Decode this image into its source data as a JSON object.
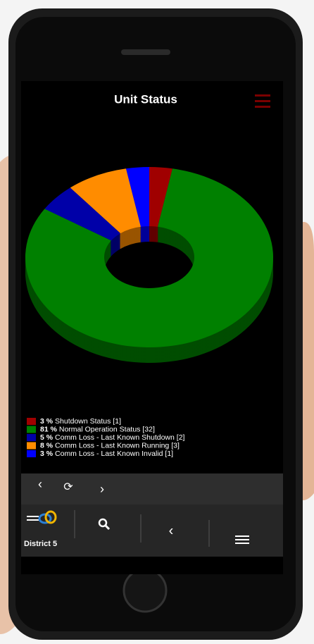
{
  "chart_data": {
    "type": "donut",
    "title": "Unit Status",
    "categories": [
      "Shutdown Status",
      "Normal Operation Status",
      "Comm Loss - Last Known Shutdown",
      "Comm Loss - Last Known Running",
      "Comm Loss - Last Known Invalid"
    ],
    "values": [
      3,
      81,
      5,
      8,
      3
    ],
    "value_labels": [
      "3 %",
      "81 %",
      "5 %",
      "8 %",
      "3 %"
    ],
    "count_labels": [
      "[1]",
      "[32]",
      "[2]",
      "[3]",
      "[1]"
    ],
    "colors": [
      "#a00000",
      "#008000",
      "#0000a8",
      "#ff8c00",
      "#0000ff"
    ]
  },
  "footer": {
    "district": "District 5"
  }
}
